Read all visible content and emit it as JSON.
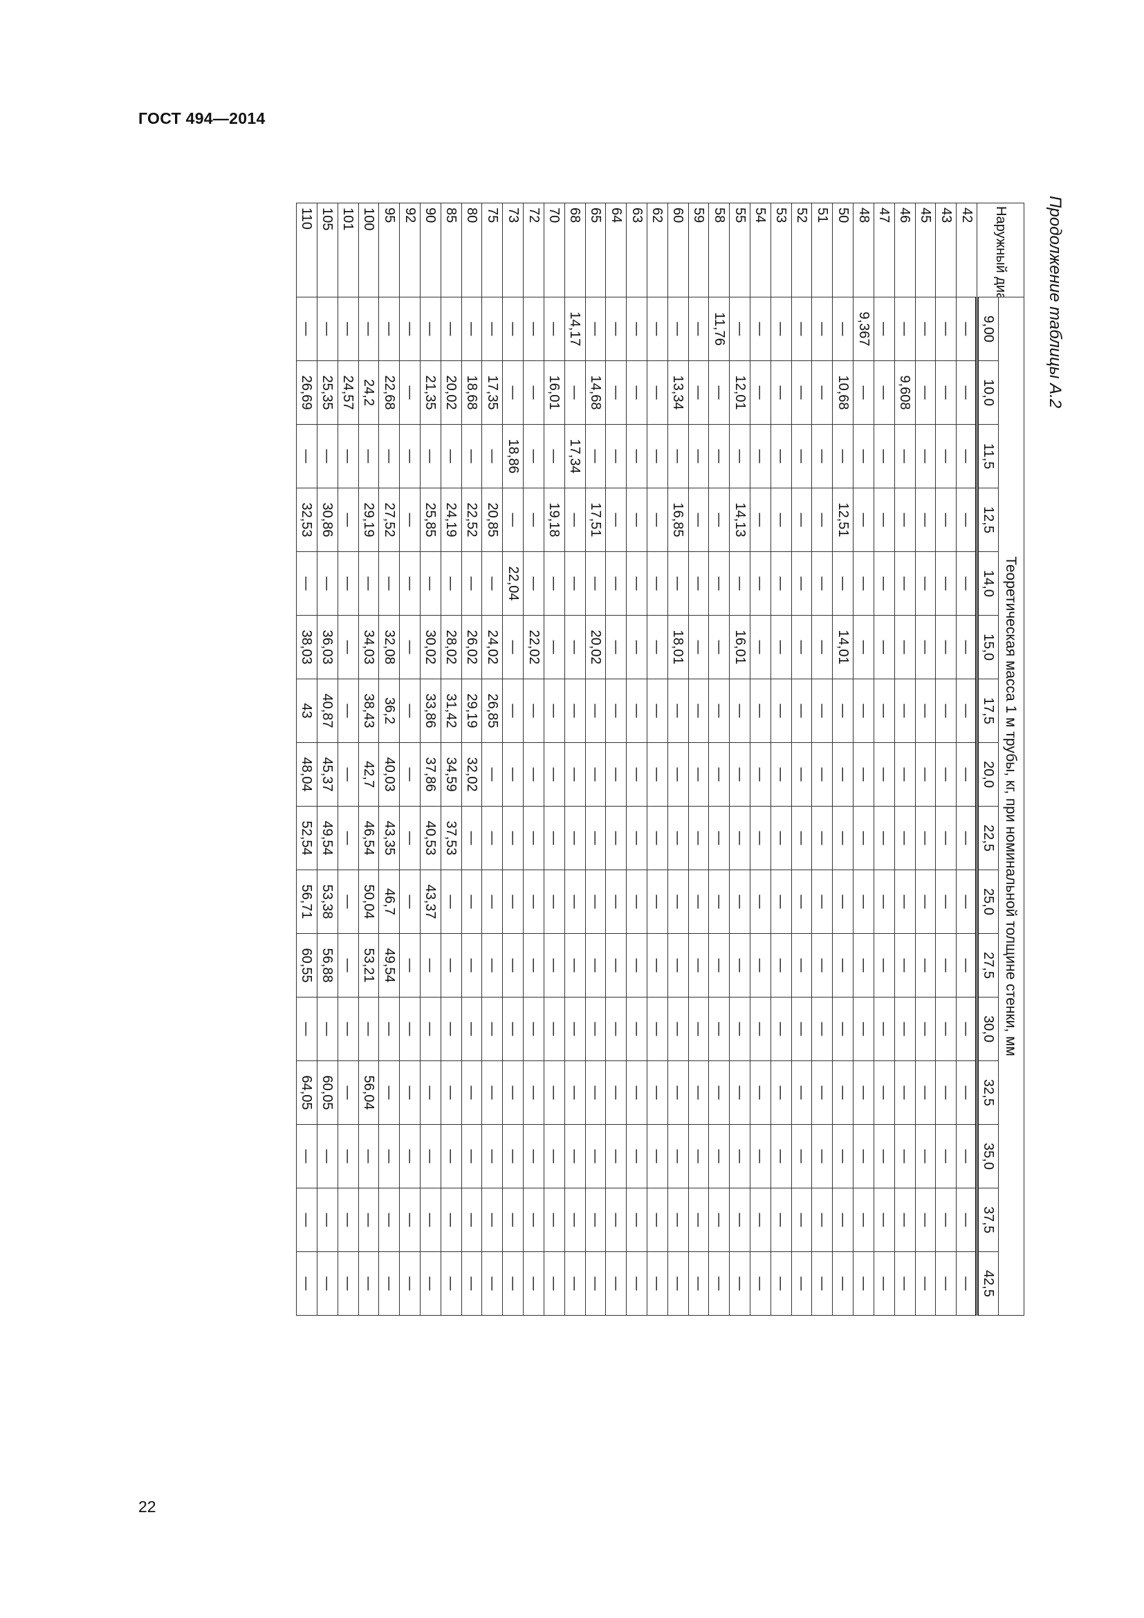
{
  "header": {
    "doc_title": "ГОСТ 494—2014"
  },
  "caption": "Продолжение таблицы А.2",
  "page_number": "22",
  "table": {
    "diameter_header": "Наружный диаметр, мм",
    "mass_header": "Теоретическая масса 1 м трубы, кг, при номинальной толщине стенки, мм",
    "thicknesses": [
      "9,00",
      "10,0",
      "11,5",
      "12,5",
      "14,0",
      "15,0",
      "17,5",
      "20,0",
      "22,5",
      "25,0",
      "27,5",
      "30,0",
      "32,5",
      "35,0",
      "37,5",
      "42,5"
    ],
    "rows": [
      {
        "d": "42",
        "v": [
          "—",
          "—",
          "—",
          "—",
          "—",
          "—",
          "—",
          "—",
          "—",
          "—",
          "—",
          "—",
          "—",
          "—",
          "—",
          "—"
        ]
      },
      {
        "d": "43",
        "v": [
          "—",
          "—",
          "—",
          "—",
          "—",
          "—",
          "—",
          "—",
          "—",
          "—",
          "—",
          "—",
          "—",
          "—",
          "—",
          "—"
        ]
      },
      {
        "d": "45",
        "v": [
          "—",
          "—",
          "—",
          "—",
          "—",
          "—",
          "—",
          "—",
          "—",
          "—",
          "—",
          "—",
          "—",
          "—",
          "—",
          "—"
        ]
      },
      {
        "d": "46",
        "v": [
          "—",
          "9,608",
          "—",
          "—",
          "—",
          "—",
          "—",
          "—",
          "—",
          "—",
          "—",
          "—",
          "—",
          "—",
          "—",
          "—"
        ]
      },
      {
        "d": "47",
        "v": [
          "—",
          "—",
          "—",
          "—",
          "—",
          "—",
          "—",
          "—",
          "—",
          "—",
          "—",
          "—",
          "—",
          "—",
          "—",
          "—"
        ]
      },
      {
        "d": "48",
        "v": [
          "9,367",
          "—",
          "—",
          "—",
          "—",
          "—",
          "—",
          "—",
          "—",
          "—",
          "—",
          "—",
          "—",
          "—",
          "—",
          "—"
        ]
      },
      {
        "d": "50",
        "v": [
          "—",
          "10,68",
          "—",
          "12,51",
          "—",
          "14,01",
          "—",
          "—",
          "—",
          "—",
          "—",
          "—",
          "—",
          "—",
          "—",
          "—"
        ]
      },
      {
        "d": "51",
        "v": [
          "—",
          "—",
          "—",
          "—",
          "—",
          "—",
          "—",
          "—",
          "—",
          "—",
          "—",
          "—",
          "—",
          "—",
          "—",
          "—"
        ]
      },
      {
        "d": "52",
        "v": [
          "—",
          "—",
          "—",
          "—",
          "—",
          "—",
          "—",
          "—",
          "—",
          "—",
          "—",
          "—",
          "—",
          "—",
          "—",
          "—"
        ]
      },
      {
        "d": "53",
        "v": [
          "—",
          "—",
          "—",
          "—",
          "—",
          "—",
          "—",
          "—",
          "—",
          "—",
          "—",
          "—",
          "—",
          "—",
          "—",
          "—"
        ]
      },
      {
        "d": "54",
        "v": [
          "—",
          "—",
          "—",
          "—",
          "—",
          "—",
          "—",
          "—",
          "—",
          "—",
          "—",
          "—",
          "—",
          "—",
          "—",
          "—"
        ]
      },
      {
        "d": "55",
        "v": [
          "—",
          "12,01",
          "—",
          "14,13",
          "—",
          "16,01",
          "—",
          "—",
          "—",
          "—",
          "—",
          "—",
          "—",
          "—",
          "—",
          "—"
        ]
      },
      {
        "d": "58",
        "v": [
          "11,76",
          "—",
          "—",
          "—",
          "—",
          "—",
          "—",
          "—",
          "—",
          "—",
          "—",
          "—",
          "—",
          "—",
          "—",
          "—"
        ]
      },
      {
        "d": "59",
        "v": [
          "—",
          "—",
          "—",
          "—",
          "—",
          "—",
          "—",
          "—",
          "—",
          "—",
          "—",
          "—",
          "—",
          "—",
          "—",
          "—"
        ]
      },
      {
        "d": "60",
        "v": [
          "—",
          "13,34",
          "—",
          "16,85",
          "—",
          "18,01",
          "—",
          "—",
          "—",
          "—",
          "—",
          "—",
          "—",
          "—",
          "—",
          "—"
        ]
      },
      {
        "d": "62",
        "v": [
          "—",
          "—",
          "—",
          "—",
          "—",
          "—",
          "—",
          "—",
          "—",
          "—",
          "—",
          "—",
          "—",
          "—",
          "—",
          "—"
        ]
      },
      {
        "d": "63",
        "v": [
          "—",
          "—",
          "—",
          "—",
          "—",
          "—",
          "—",
          "—",
          "—",
          "—",
          "—",
          "—",
          "—",
          "—",
          "—",
          "—"
        ]
      },
      {
        "d": "64",
        "v": [
          "—",
          "—",
          "—",
          "—",
          "—",
          "—",
          "—",
          "—",
          "—",
          "—",
          "—",
          "—",
          "—",
          "—",
          "—",
          "—"
        ]
      },
      {
        "d": "65",
        "v": [
          "—",
          "14,68",
          "—",
          "17,51",
          "—",
          "20,02",
          "—",
          "—",
          "—",
          "—",
          "—",
          "—",
          "—",
          "—",
          "—",
          "—"
        ]
      },
      {
        "d": "68",
        "v": [
          "14,17",
          "—",
          "17,34",
          "—",
          "—",
          "—",
          "—",
          "—",
          "—",
          "—",
          "—",
          "—",
          "—",
          "—",
          "—",
          "—"
        ]
      },
      {
        "d": "70",
        "v": [
          "—",
          "16,01",
          "—",
          "19,18",
          "—",
          "—",
          "—",
          "—",
          "—",
          "—",
          "—",
          "—",
          "—",
          "—",
          "—",
          "—"
        ]
      },
      {
        "d": "72",
        "v": [
          "—",
          "—",
          "—",
          "—",
          "—",
          "22,02",
          "—",
          "—",
          "—",
          "—",
          "—",
          "—",
          "—",
          "—",
          "—",
          "—"
        ]
      },
      {
        "d": "73",
        "v": [
          "—",
          "—",
          "18,86",
          "—",
          "22,04",
          "—",
          "—",
          "—",
          "—",
          "—",
          "—",
          "—",
          "—",
          "—",
          "—",
          "—"
        ]
      },
      {
        "d": "75",
        "v": [
          "—",
          "17,35",
          "—",
          "20,85",
          "—",
          "24,02",
          "26,85",
          "—",
          "—",
          "—",
          "—",
          "—",
          "—",
          "—",
          "—",
          "—"
        ]
      },
      {
        "d": "80",
        "v": [
          "—",
          "18,68",
          "—",
          "22,52",
          "—",
          "26,02",
          "29,19",
          "32,02",
          "—",
          "—",
          "—",
          "—",
          "—",
          "—",
          "—",
          "—"
        ]
      },
      {
        "d": "85",
        "v": [
          "—",
          "20,02",
          "—",
          "24,19",
          "—",
          "28,02",
          "31,42",
          "34,59",
          "37,53",
          "—",
          "—",
          "—",
          "—",
          "—",
          "—",
          "—"
        ]
      },
      {
        "d": "90",
        "v": [
          "—",
          "21,35",
          "—",
          "25,85",
          "—",
          "30,02",
          "33,86",
          "37,86",
          "40,53",
          "43,37",
          "—",
          "—",
          "—",
          "—",
          "—",
          "—"
        ]
      },
      {
        "d": "92",
        "v": [
          "—",
          "—",
          "—",
          "—",
          "—",
          "—",
          "—",
          "—",
          "—",
          "—",
          "—",
          "—",
          "—",
          "—",
          "—",
          "—"
        ]
      },
      {
        "d": "95",
        "v": [
          "—",
          "22,68",
          "—",
          "27,52",
          "—",
          "32,08",
          "36,2",
          "40,03",
          "43,35",
          "46,7",
          "49,54",
          "—",
          "—",
          "—",
          "—",
          "—"
        ]
      },
      {
        "d": "100",
        "v": [
          "—",
          "24,2",
          "—",
          "29,19",
          "—",
          "34,03",
          "38,43",
          "42,7",
          "46,54",
          "50,04",
          "53,21",
          "—",
          "56,04",
          "—",
          "—",
          "—"
        ]
      },
      {
        "d": "101",
        "v": [
          "—",
          "24,57",
          "—",
          "—",
          "—",
          "—",
          "—",
          "—",
          "—",
          "—",
          "—",
          "—",
          "—",
          "—",
          "—",
          "—"
        ]
      },
      {
        "d": "105",
        "v": [
          "—",
          "25,35",
          "—",
          "30,86",
          "—",
          "36,03",
          "40,87",
          "45,37",
          "49,54",
          "53,38",
          "56,88",
          "—",
          "60,05",
          "—",
          "—",
          "—"
        ]
      },
      {
        "d": "110",
        "v": [
          "—",
          "26,69",
          "—",
          "32,53",
          "—",
          "38,03",
          "43",
          "48,04",
          "52,54",
          "56,71",
          "60,55",
          "—",
          "64,05",
          "—",
          "—",
          "—"
        ]
      }
    ]
  }
}
